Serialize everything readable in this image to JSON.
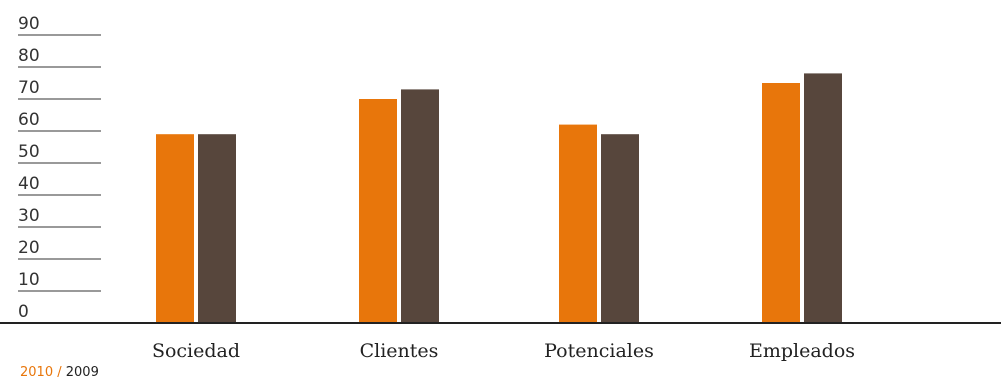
{
  "chart_data": {
    "type": "bar",
    "categories": [
      "Sociedad",
      "Clientes",
      "Potenciales",
      "Empleados"
    ],
    "series": [
      {
        "name": "2010",
        "values": [
          59,
          70,
          62,
          75
        ]
      },
      {
        "name": "2009",
        "values": [
          59,
          73,
          59,
          78
        ]
      }
    ],
    "ylim": [
      0,
      90
    ],
    "yticks": [
      "0",
      "10",
      "20",
      "30",
      "40",
      "50",
      "60",
      "70",
      "80",
      "90"
    ],
    "grid": true,
    "legend_position": "bottom-left"
  },
  "legend": {
    "series_2010": "2010",
    "separator": "/",
    "series_2009": "2009"
  },
  "colors": {
    "series_2010": "#e8760b",
    "series_2009": "#57463c",
    "grid": "#333333",
    "baseline": "#222222"
  }
}
